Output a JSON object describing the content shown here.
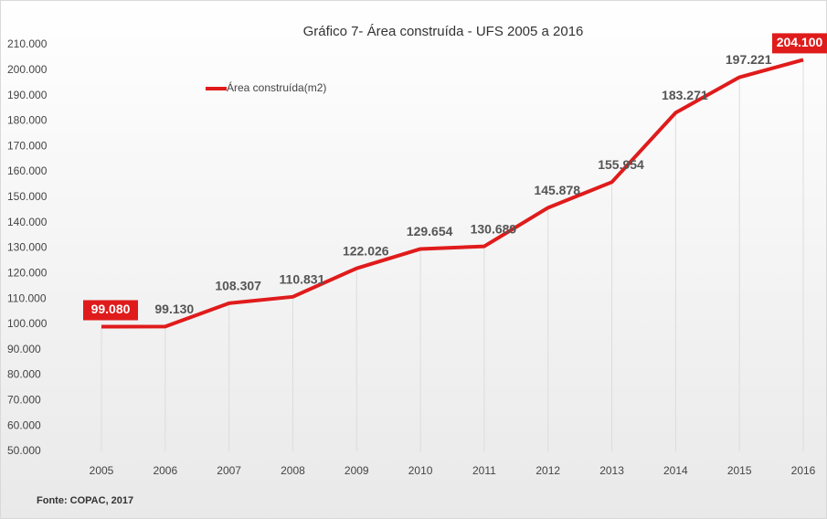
{
  "chart_data": {
    "type": "line",
    "title": "Gráfico 7- Área construída  - UFS 2005 a 2016",
    "source": "Fonte: COPAC, 2017",
    "categories": [
      "2005",
      "2006",
      "2007",
      "2008",
      "2009",
      "2010",
      "2011",
      "2012",
      "2013",
      "2014",
      "2015",
      "2016"
    ],
    "series": [
      {
        "name": "Área construída(m2)",
        "color": "#e01b1b",
        "values": [
          99080,
          99130,
          108307,
          110831,
          122026,
          129654,
          130689,
          145878,
          155954,
          183271,
          197221,
          204100
        ],
        "value_labels": [
          "99.080",
          "99.130",
          "108.307",
          "110.831",
          "122.026",
          "129.654",
          "130.689",
          "145.878",
          "155.954",
          "183.271",
          "197.221",
          "204.100"
        ]
      }
    ],
    "ylim": [
      50000,
      210000
    ],
    "yticks": [
      {
        "value": 50000,
        "label": "50.000"
      },
      {
        "value": 60000,
        "label": "60.000"
      },
      {
        "value": 70000,
        "label": "70.000"
      },
      {
        "value": 80000,
        "label": "80.000"
      },
      {
        "value": 90000,
        "label": "90.000"
      },
      {
        "value": 100000,
        "label": "100.000"
      },
      {
        "value": 110000,
        "label": "110.000"
      },
      {
        "value": 120000,
        "label": "120.000"
      },
      {
        "value": 130000,
        "label": "130.000"
      },
      {
        "value": 140000,
        "label": "140.000"
      },
      {
        "value": 150000,
        "label": "150.000"
      },
      {
        "value": 160000,
        "label": "160.000"
      },
      {
        "value": 170000,
        "label": "170.000"
      },
      {
        "value": 180000,
        "label": "180.000"
      },
      {
        "value": 190000,
        "label": "190.000"
      },
      {
        "value": 200000,
        "label": "200.000"
      },
      {
        "value": 210000,
        "label": "210.000"
      }
    ],
    "legend": "top-left"
  }
}
